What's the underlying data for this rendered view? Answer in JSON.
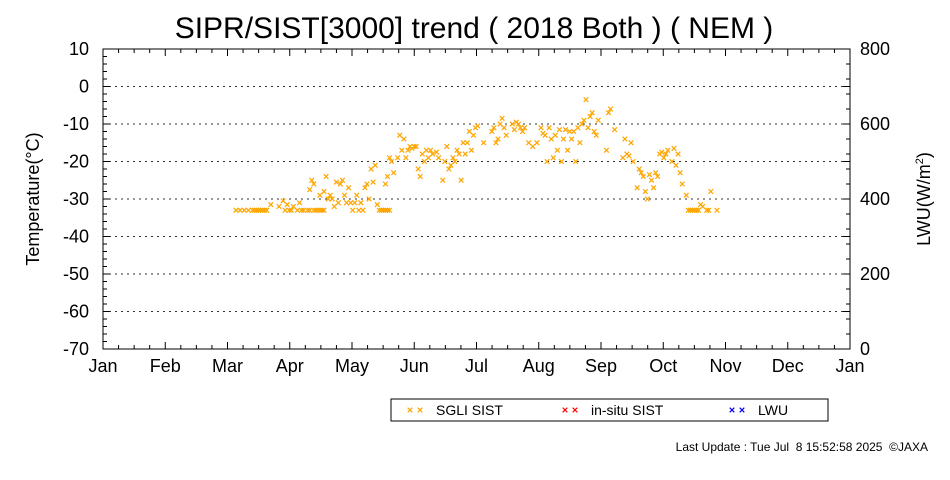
{
  "chart_data": {
    "type": "scatter",
    "title": "SIPR/SIST[3000] trend ( 2018 Both ) ( NEM )",
    "ylabel": "Temperature(°C)",
    "y2label_prefix": "LWU(W/m",
    "y2label_sup": "2",
    "y2label_suffix": ")",
    "ylim": [
      -70,
      10
    ],
    "y2lim": [
      0,
      800
    ],
    "yticks": [
      "10",
      "0",
      "-10",
      "-20",
      "-30",
      "-40",
      "-50",
      "-60",
      "-70"
    ],
    "y2ticks": [
      "800",
      "600",
      "400",
      "200",
      "0"
    ],
    "months": [
      "Jan",
      "Feb",
      "Mar",
      "Apr",
      "May",
      "Jun",
      "Jul",
      "Aug",
      "Sep",
      "Oct",
      "Nov",
      "Dec",
      "Jan"
    ],
    "grid": "horizontal dotted",
    "legend_position": "bottom",
    "series": [
      {
        "name": "SGLI SIST",
        "color": "#FFA500",
        "points": [
          [
            65,
            -33
          ],
          [
            67,
            -33
          ],
          [
            69,
            -33
          ],
          [
            71,
            -33
          ],
          [
            73,
            -33
          ],
          [
            74,
            -33
          ],
          [
            75,
            -33
          ],
          [
            76,
            -33
          ],
          [
            77,
            -33
          ],
          [
            78,
            -33
          ],
          [
            79,
            -33
          ],
          [
            80,
            -33
          ],
          [
            82,
            -31.5
          ],
          [
            86,
            -32
          ],
          [
            88,
            -30.5
          ],
          [
            89,
            -33
          ],
          [
            90,
            -31.5
          ],
          [
            91,
            -33
          ],
          [
            92,
            -33
          ],
          [
            93,
            -32
          ],
          [
            95,
            -33
          ],
          [
            96,
            -31
          ],
          [
            97,
            -33
          ],
          [
            98,
            -33
          ],
          [
            100,
            -33
          ],
          [
            101,
            -33
          ],
          [
            103,
            -33
          ],
          [
            104,
            -33
          ],
          [
            105,
            -33
          ],
          [
            106,
            -33
          ],
          [
            107,
            -33
          ],
          [
            108,
            -33
          ],
          [
            101,
            -27.5
          ],
          [
            102,
            -25
          ],
          [
            103,
            -26
          ],
          [
            106,
            -29
          ],
          [
            108,
            -28
          ],
          [
            109,
            -24
          ],
          [
            110,
            -30
          ],
          [
            111,
            -29
          ],
          [
            112,
            -30
          ],
          [
            113,
            -32
          ],
          [
            114,
            -25.5
          ],
          [
            115,
            -31
          ],
          [
            116,
            -26
          ],
          [
            117,
            -25
          ],
          [
            118,
            -29
          ],
          [
            119,
            -31
          ],
          [
            120,
            -27
          ],
          [
            121,
            -31
          ],
          [
            122,
            -33
          ],
          [
            123,
            -31
          ],
          [
            124,
            -29
          ],
          [
            125,
            -33
          ],
          [
            126,
            -31
          ],
          [
            127,
            -33
          ],
          [
            128,
            -27
          ],
          [
            129,
            -26
          ],
          [
            130,
            -30
          ],
          [
            131,
            -22
          ],
          [
            132,
            -25.5
          ],
          [
            133,
            -21
          ],
          [
            134,
            -31.5
          ],
          [
            135,
            -33
          ],
          [
            136,
            -33
          ],
          [
            137,
            -33
          ],
          [
            138,
            -33
          ],
          [
            139,
            -33
          ],
          [
            140,
            -33
          ],
          [
            138,
            -26
          ],
          [
            139,
            -24
          ],
          [
            140,
            -19
          ],
          [
            141,
            -20
          ],
          [
            142,
            -23
          ],
          [
            144,
            -19
          ],
          [
            145,
            -13
          ],
          [
            146,
            -17
          ],
          [
            147,
            -14
          ],
          [
            148,
            -19
          ],
          [
            149,
            -17
          ],
          [
            150,
            -16
          ],
          [
            151,
            -16.5
          ],
          [
            152,
            -16
          ],
          [
            153,
            -16
          ],
          [
            154,
            -22
          ],
          [
            155,
            -24
          ],
          [
            156,
            -18
          ],
          [
            157,
            -20
          ],
          [
            158,
            -17
          ],
          [
            159,
            -19
          ],
          [
            160,
            -17
          ],
          [
            161,
            -18
          ],
          [
            163,
            -17.5
          ],
          [
            164,
            -19
          ],
          [
            166,
            -25
          ],
          [
            167,
            -20
          ],
          [
            168,
            -16
          ],
          [
            169,
            -22
          ],
          [
            170,
            -21
          ],
          [
            171,
            -19
          ],
          [
            172,
            -20
          ],
          [
            173,
            -17
          ],
          [
            174,
            -18
          ],
          [
            175,
            -25
          ],
          [
            176,
            -15
          ],
          [
            177,
            -18
          ],
          [
            178,
            -15
          ],
          [
            179,
            -12
          ],
          [
            180,
            -17
          ],
          [
            181,
            -13
          ],
          [
            182,
            -11
          ],
          [
            183,
            -10.5
          ],
          [
            186,
            -15
          ],
          [
            190,
            -12
          ],
          [
            191,
            -11
          ],
          [
            192,
            -15
          ],
          [
            193,
            -14
          ],
          [
            194,
            -10
          ],
          [
            195,
            -8.5
          ],
          [
            196,
            -11
          ],
          [
            197,
            -13
          ],
          [
            200,
            -10
          ],
          [
            201,
            -11.5
          ],
          [
            202,
            -9.5
          ],
          [
            203,
            -10
          ],
          [
            204,
            -11
          ],
          [
            205,
            -12
          ],
          [
            206,
            -11
          ],
          [
            208,
            -15
          ],
          [
            210,
            -16
          ],
          [
            212,
            -15
          ],
          [
            214,
            -11
          ],
          [
            215,
            -12.5
          ],
          [
            216,
            -13
          ],
          [
            217,
            -20
          ],
          [
            218,
            -11
          ],
          [
            219,
            -14
          ],
          [
            220,
            -19
          ],
          [
            221,
            -13
          ],
          [
            222,
            -17
          ],
          [
            223,
            -11.5
          ],
          [
            224,
            -20
          ],
          [
            225,
            -14
          ],
          [
            226,
            -11.5
          ],
          [
            227,
            -17
          ],
          [
            228,
            -12
          ],
          [
            229,
            -14
          ],
          [
            230,
            -12
          ],
          [
            231,
            -20
          ],
          [
            232,
            -11
          ],
          [
            233,
            -15
          ],
          [
            234,
            -10
          ],
          [
            235,
            -9
          ],
          [
            236,
            -3.5
          ],
          [
            237,
            -11
          ],
          [
            238,
            -8
          ],
          [
            239,
            -7
          ],
          [
            240,
            -12
          ],
          [
            241,
            -13
          ],
          [
            242,
            -9
          ],
          [
            246,
            -17
          ],
          [
            247,
            -7
          ],
          [
            248,
            -6
          ],
          [
            250,
            -11.5
          ],
          [
            254,
            -19
          ],
          [
            255,
            -14
          ],
          [
            256,
            -18
          ],
          [
            257,
            -18.5
          ],
          [
            258,
            -15
          ],
          [
            259,
            -20
          ],
          [
            261,
            -27
          ],
          [
            262,
            -22
          ],
          [
            263,
            -23
          ],
          [
            264,
            -24
          ],
          [
            265,
            -28
          ],
          [
            266,
            -30
          ],
          [
            267,
            -23.5
          ],
          [
            268,
            -25
          ],
          [
            269,
            -27
          ],
          [
            270,
            -23
          ],
          [
            271,
            -24
          ],
          [
            272,
            -18
          ],
          [
            273,
            -17.5
          ],
          [
            274,
            -19
          ],
          [
            275,
            -18
          ],
          [
            276,
            -17
          ],
          [
            278,
            -20
          ],
          [
            279,
            -16.5
          ],
          [
            280,
            -21
          ],
          [
            281,
            -18
          ],
          [
            282,
            -23
          ],
          [
            283,
            -26
          ],
          [
            285,
            -29
          ],
          [
            286,
            -33
          ],
          [
            287,
            -33
          ],
          [
            288,
            -33
          ],
          [
            289,
            -33
          ],
          [
            290,
            -33
          ],
          [
            291,
            -33
          ],
          [
            292,
            -31.5
          ],
          [
            293,
            -32
          ],
          [
            295,
            -33
          ],
          [
            296,
            -33
          ],
          [
            297,
            -28
          ],
          [
            300,
            -33
          ]
        ]
      },
      {
        "name": "in-situ SIST",
        "color": "#FF0000",
        "points": []
      },
      {
        "name": "LWU",
        "color": "#0000FF",
        "points": []
      }
    ]
  },
  "legend": [
    {
      "label": "SGLI SIST",
      "color": "#FFA500"
    },
    {
      "label": "in-situ SIST",
      "color": "#FF0000"
    },
    {
      "label": "LWU",
      "color": "#0000FF"
    }
  ],
  "footer": "Last Update : Tue Jul  8 15:52:58 2025  ©JAXA"
}
